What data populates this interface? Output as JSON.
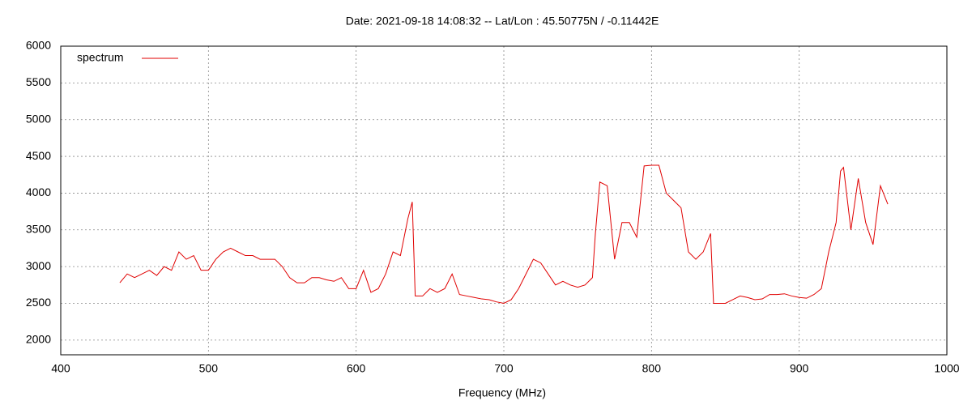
{
  "chart_data": {
    "type": "line",
    "title": "Date: 2021-09-18 14:08:32  --  Lat/Lon : 45.50775N / -0.11442E",
    "x_label": "Frequency (MHz)",
    "x": [
      440,
      445,
      450,
      455,
      460,
      465,
      470,
      475,
      480,
      485,
      490,
      495,
      500,
      505,
      510,
      515,
      520,
      525,
      530,
      535,
      540,
      545,
      550,
      555,
      560,
      565,
      570,
      575,
      580,
      585,
      590,
      595,
      600,
      605,
      610,
      615,
      620,
      625,
      630,
      635,
      638,
      640,
      645,
      650,
      655,
      660,
      665,
      670,
      675,
      680,
      685,
      690,
      695,
      700,
      705,
      710,
      715,
      720,
      725,
      730,
      735,
      740,
      745,
      750,
      755,
      760,
      762,
      765,
      770,
      775,
      780,
      785,
      790,
      795,
      800,
      805,
      810,
      815,
      820,
      825,
      830,
      835,
      840,
      842,
      850,
      855,
      860,
      865,
      870,
      875,
      880,
      885,
      890,
      895,
      900,
      905,
      910,
      915,
      920,
      925,
      928,
      930,
      935,
      940,
      945,
      950,
      955,
      960
    ],
    "series": [
      {
        "name": "spectrum",
        "color": "#e00000",
        "values": [
          2780,
          2900,
          2850,
          2900,
          2950,
          2880,
          3000,
          2950,
          3200,
          3100,
          3150,
          2950,
          2950,
          3100,
          3200,
          3250,
          3200,
          3150,
          3150,
          3100,
          3100,
          3100,
          3000,
          2850,
          2780,
          2780,
          2850,
          2850,
          2820,
          2800,
          2850,
          2700,
          2700,
          2950,
          2650,
          2700,
          2900,
          3200,
          3150,
          3650,
          3880,
          2600,
          2600,
          2700,
          2650,
          2700,
          2900,
          2620,
          2600,
          2580,
          2560,
          2550,
          2520,
          2500,
          2550,
          2700,
          2900,
          3100,
          3050,
          2900,
          2750,
          2800,
          2750,
          2720,
          2750,
          2850,
          3450,
          4150,
          4100,
          3100,
          3600,
          3600,
          3400,
          4370,
          4380,
          4380,
          4000,
          3900,
          3800,
          3200,
          3100,
          3200,
          3450,
          2500,
          2500,
          2550,
          2600,
          2580,
          2550,
          2560,
          2620,
          2620,
          2630,
          2600,
          2580,
          2570,
          2620,
          2700,
          3200,
          3600,
          4300,
          4350,
          3500,
          4200,
          3600,
          3300,
          4100,
          3850
        ]
      }
    ],
    "xlim": [
      400,
      1000
    ],
    "xticks": [
      400,
      500,
      600,
      700,
      800,
      900,
      1000
    ],
    "ylim": [
      1800,
      6000
    ],
    "yticks": [
      2000,
      2500,
      3000,
      3500,
      4000,
      4500,
      5000,
      5500,
      6000
    ],
    "grid": true,
    "legend_position": "top-left"
  }
}
